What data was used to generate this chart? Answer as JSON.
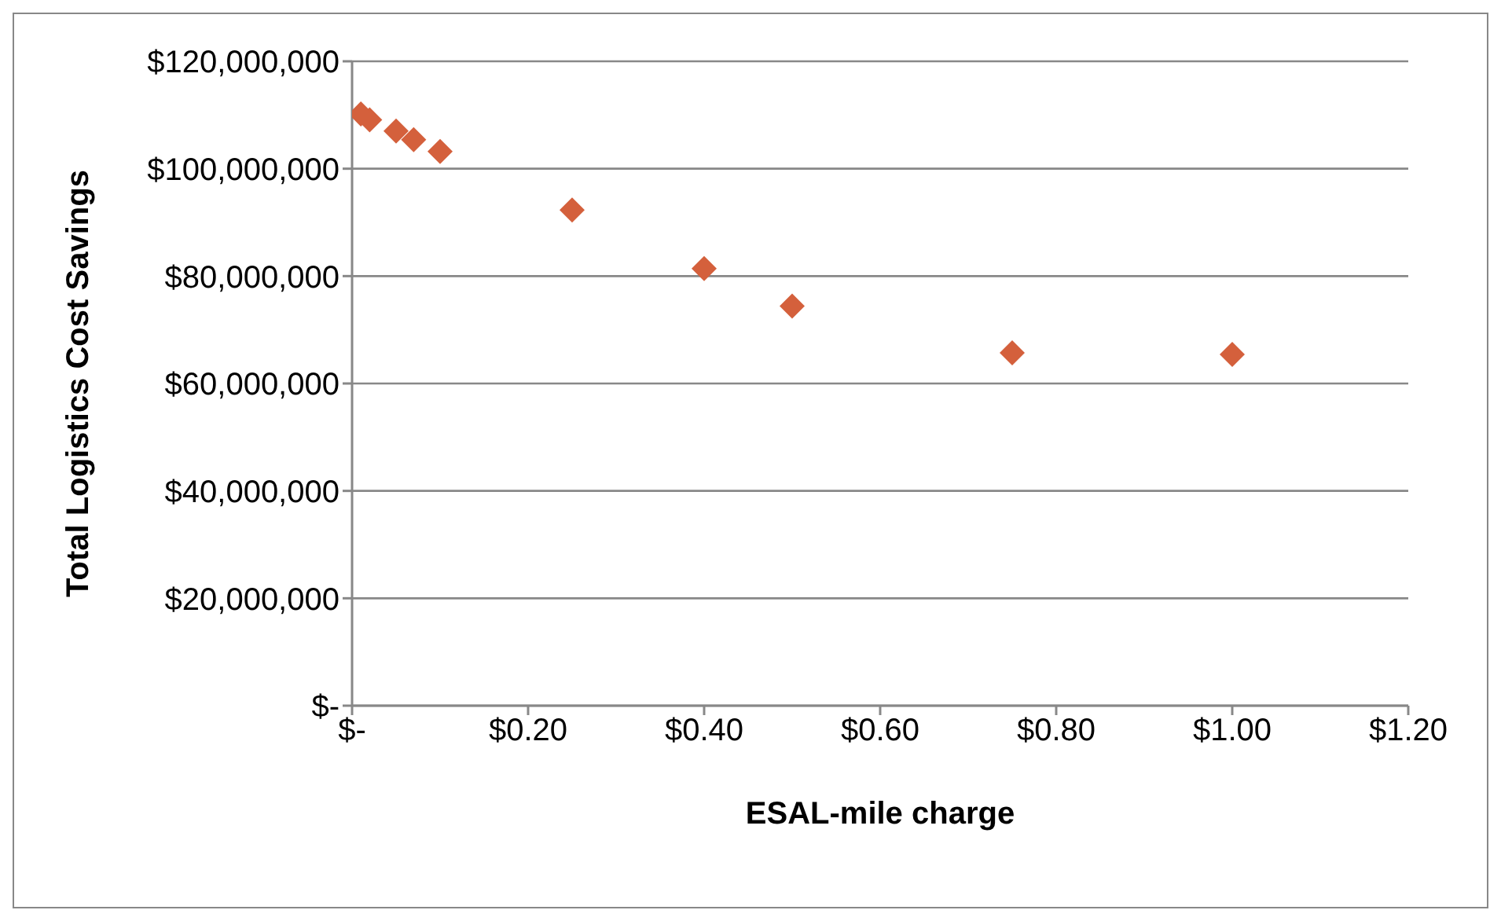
{
  "chart_data": {
    "type": "scatter",
    "xlabel": "ESAL-mile charge",
    "ylabel": "Total Logistics Cost Savings",
    "x": [
      0.01,
      0.02,
      0.05,
      0.07,
      0.1,
      0.25,
      0.4,
      0.5,
      0.75,
      1.0
    ],
    "series": [
      {
        "color": "#d4603c",
        "values": [
          110200000,
          109100000,
          107000000,
          105400000,
          103200000,
          92300000,
          81400000,
          74400000,
          65700000,
          65400000
        ]
      }
    ],
    "xlim": [
      0,
      1.2
    ],
    "xticks": [
      {
        "value": 0,
        "label": "$-"
      },
      {
        "value": 0.2,
        "label": "$0.20"
      },
      {
        "value": 0.4,
        "label": "$0.40"
      },
      {
        "value": 0.6,
        "label": "$0.60"
      },
      {
        "value": 0.8,
        "label": "$0.80"
      },
      {
        "value": 1,
        "label": "$1.00"
      },
      {
        "value": 1.2,
        "label": "$1.20"
      }
    ],
    "ylim": [
      0,
      120000000
    ],
    "yticks": [
      {
        "value": 0,
        "label": "$-"
      },
      {
        "value": 20000000,
        "label": "$20,000,000"
      },
      {
        "value": 40000000,
        "label": "$40,000,000"
      },
      {
        "value": 60000000,
        "label": "$60,000,000"
      },
      {
        "value": 80000000,
        "label": "$80,000,000"
      },
      {
        "value": 100000000,
        "label": "$100,000,000"
      },
      {
        "value": 120000000,
        "label": "$120,000,000"
      }
    ],
    "grid": "y",
    "marker": "diamond",
    "legend": false
  }
}
